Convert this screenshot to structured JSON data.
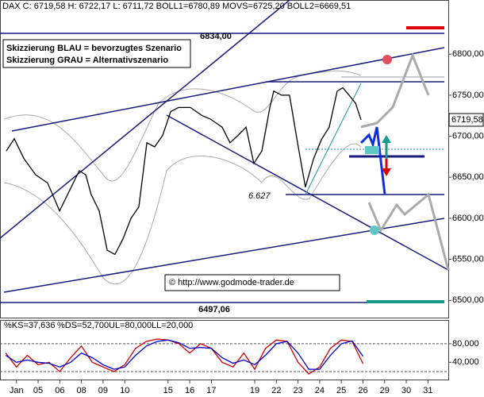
{
  "chart_data": [
    {
      "type": "line",
      "header": "DAX C: 6719,58 H: 6722,17 L: 6711,72 BOLL1=6780,89 MOVS=6725,20 BOLL2=6669,51",
      "legend_text": [
        "Skizzierung BLAU = bevorzugtes Szenario",
        "Skizzierung GRAU = Alternativszenario"
      ],
      "annotations": [
        "6834,00",
        "6497,06",
        "6.627",
        "© http://www.godmode-trader.de"
      ],
      "last_price_label": "6719,58",
      "x": [
        -0.47,
        -0.1,
        0.34,
        0.89,
        1.44,
        1.99,
        2.36,
        2.9,
        3.2,
        3.45,
        3.82,
        4.19,
        4.55,
        4.92,
        5.29,
        5.65,
        6.02,
        6.38,
        6.75,
        7.12,
        7.48,
        8.03,
        8.58,
        8.95,
        9.5,
        9.86,
        10.23,
        10.6,
        10.96,
        11.33,
        11.7,
        11.88,
        12.25,
        12.61,
        12.98,
        13.34,
        13.71,
        14.08,
        14.44,
        14.81,
        15.07,
        15.36,
        15.66,
        15.91
      ],
      "series": [
        {
          "color": "#000000",
          "values": [
            6682,
            6697,
            6673,
            6653,
            6643,
            6609,
            6629,
            6658,
            6653,
            6629,
            6609,
            6561,
            6556,
            6575,
            6600,
            6614,
            6692,
            6687,
            6701,
            6730,
            6735,
            6735,
            6725,
            6721,
            6711,
            6692,
            6701,
            6711,
            6667,
            6682,
            6735,
            6755,
            6750,
            6750,
            6692,
            6638,
            6672,
            6696,
            6711,
            6755,
            6759,
            6750,
            6740,
            6720
          ]
        }
      ],
      "xlim": [
        -0.76,
        19.94
      ],
      "xticks": [
        {
          "value": 0,
          "label": "Jan"
        },
        {
          "value": 1,
          "label": "05"
        },
        {
          "value": 2,
          "label": "06"
        },
        {
          "value": 3,
          "label": "08"
        },
        {
          "value": 4,
          "label": "09"
        },
        {
          "value": 5,
          "label": "10"
        },
        {
          "value": 7,
          "label": "15"
        },
        {
          "value": 8,
          "label": "16"
        },
        {
          "value": 9,
          "label": "17"
        },
        {
          "value": 11,
          "label": "19"
        },
        {
          "value": 12,
          "label": "22"
        },
        {
          "value": 13,
          "label": "23"
        },
        {
          "value": 14,
          "label": "24"
        },
        {
          "value": 15,
          "label": "25"
        },
        {
          "value": 16,
          "label": "26"
        },
        {
          "value": 17,
          "label": "29"
        },
        {
          "value": 18,
          "label": "30"
        },
        {
          "value": 19,
          "label": "31"
        }
      ],
      "ylim": [
        6479,
        6866
      ],
      "yticks": [
        {
          "value": 6500,
          "label": "6500,00"
        },
        {
          "value": 6550,
          "label": "6550,00"
        },
        {
          "value": 6600,
          "label": "6600,00"
        },
        {
          "value": 6650,
          "label": "6650,00"
        },
        {
          "value": 6700,
          "label": "6700,00"
        },
        {
          "value": 6750,
          "label": "6750,00"
        },
        {
          "value": 6800,
          "label": "6800,00"
        }
      ]
    },
    {
      "type": "line",
      "header_parts": [
        "%KS=37,636",
        "%DS=52,700",
        "UL=80,000",
        "LL=20,000"
      ],
      "x": [
        -0.5,
        0,
        0.5,
        1,
        1.5,
        2,
        2.5,
        3,
        3.5,
        4,
        4.5,
        5,
        5.5,
        6,
        6.5,
        7,
        7.5,
        8,
        8.5,
        9,
        9.5,
        10,
        10.5,
        11,
        11.5,
        12,
        12.5,
        13,
        13.5,
        14,
        14.5,
        15,
        15.5,
        16
      ],
      "series": [
        {
          "color": "#cc0000",
          "values": [
            60,
            30,
            55,
            35,
            40,
            20,
            50,
            75,
            40,
            30,
            20,
            35,
            70,
            85,
            90,
            88,
            80,
            60,
            80,
            70,
            40,
            30,
            60,
            25,
            70,
            88,
            85,
            40,
            15,
            30,
            70,
            88,
            85,
            37
          ]
        },
        {
          "color": "#0000cc",
          "values": [
            55,
            40,
            45,
            40,
            38,
            30,
            40,
            60,
            50,
            35,
            25,
            30,
            55,
            75,
            85,
            88,
            82,
            70,
            72,
            70,
            50,
            38,
            45,
            35,
            55,
            80,
            85,
            60,
            25,
            25,
            55,
            80,
            86,
            53
          ]
        }
      ],
      "reference_lines": [
        80,
        20
      ],
      "ylim": [
        3,
        131
      ],
      "yticks": [
        {
          "value": 40,
          "label": "40,000"
        },
        {
          "value": 80,
          "label": "80,000"
        }
      ]
    }
  ]
}
